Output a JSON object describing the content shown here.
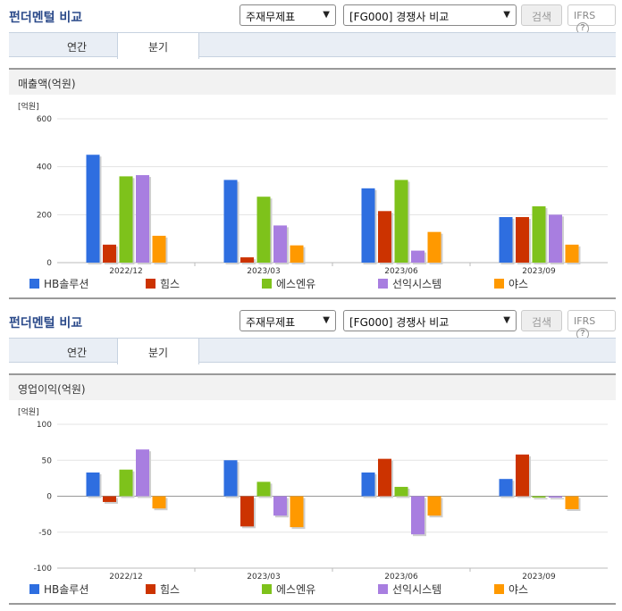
{
  "panels": [
    {
      "title": "펀더멘털 비교",
      "select1": "주재무제표",
      "select2": "[FG000] 경쟁사 비교",
      "search_label": "검색",
      "ifrs_label": "IFRS",
      "help_icon": "?",
      "tabs": [
        {
          "label": "연간",
          "active": false
        },
        {
          "label": "분기",
          "active": true
        }
      ],
      "metric_label": "매출액(억원)",
      "unit_label": "[억원]",
      "legend": [
        "HB솔루션",
        "힘스",
        "에스엔유",
        "선익시스템",
        "야스"
      ]
    },
    {
      "title": "펀더멘털 비교",
      "select1": "주재무제표",
      "select2": "[FG000] 경쟁사 비교",
      "search_label": "검색",
      "ifrs_label": "IFRS",
      "help_icon": "?",
      "tabs": [
        {
          "label": "연간",
          "active": false
        },
        {
          "label": "분기",
          "active": true
        }
      ],
      "metric_label": "영업이익(억원)",
      "unit_label": "[억원]",
      "legend": [
        "HB솔루션",
        "힘스",
        "에스엔유",
        "선익시스템",
        "야스"
      ]
    }
  ],
  "colors": [
    "#2e6ee0",
    "#cc3300",
    "#7ec21b",
    "#a87ee0",
    "#ff9900"
  ],
  "chart_data": [
    {
      "type": "bar",
      "title": "",
      "ylabel": "[억원]",
      "categories": [
        "2022/12",
        "2023/03",
        "2023/06",
        "2023/09"
      ],
      "ylim": [
        0,
        600
      ],
      "yticks": [
        0,
        200,
        400,
        600
      ],
      "grid": true,
      "legend_position": "bottom",
      "series": [
        {
          "name": "HB솔루션",
          "values": [
            450,
            345,
            310,
            190
          ]
        },
        {
          "name": "힘스",
          "values": [
            75,
            22,
            215,
            190
          ]
        },
        {
          "name": "에스엔유",
          "values": [
            360,
            275,
            345,
            235
          ]
        },
        {
          "name": "선익시스템",
          "values": [
            365,
            155,
            50,
            200
          ]
        },
        {
          "name": "야스",
          "values": [
            112,
            72,
            128,
            75
          ]
        }
      ]
    },
    {
      "type": "bar",
      "title": "",
      "ylabel": "[억원]",
      "categories": [
        "2022/12",
        "2023/03",
        "2023/06",
        "2023/09"
      ],
      "ylim": [
        -100,
        100
      ],
      "yticks": [
        -100,
        -50,
        0,
        50,
        100
      ],
      "grid": true,
      "legend_position": "bottom",
      "series": [
        {
          "name": "HB솔루션",
          "values": [
            33,
            50,
            33,
            24
          ]
        },
        {
          "name": "힘스",
          "values": [
            -8,
            -42,
            52,
            58
          ]
        },
        {
          "name": "에스엔유",
          "values": [
            37,
            20,
            13,
            -2
          ]
        },
        {
          "name": "선익시스템",
          "values": [
            65,
            -27,
            -53,
            -2
          ]
        },
        {
          "name": "야스",
          "values": [
            -17,
            -43,
            -27,
            -18
          ]
        }
      ]
    }
  ]
}
